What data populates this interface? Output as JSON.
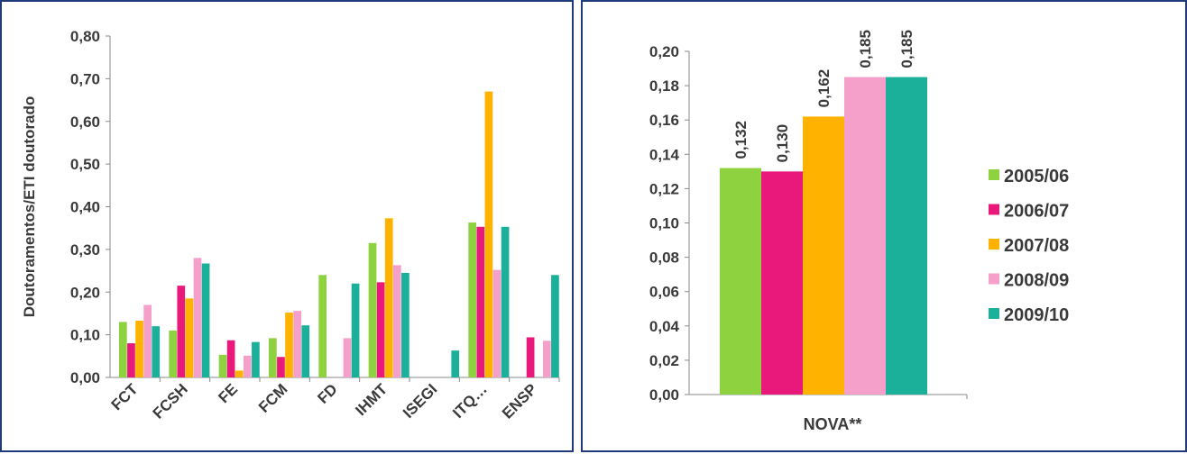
{
  "chart_data": [
    {
      "type": "bar",
      "ylabel": "Doutoramentos/ETI doutorado",
      "xlabel": "",
      "ylim": [
        0,
        0.8
      ],
      "yticks": [
        "0,00",
        "0,10",
        "0,20",
        "0,30",
        "0,40",
        "0,50",
        "0,60",
        "0,70",
        "0,80"
      ],
      "categories": [
        "FCT",
        "FCSH",
        "FE",
        "FCM",
        "FD",
        "IHMT",
        "ISEGI",
        "ITQ…",
        "ENSP"
      ],
      "series": [
        {
          "name": "2005/06",
          "color": "#8ed23f",
          "values": [
            0.13,
            0.11,
            0.053,
            0.092,
            0.24,
            0.315,
            null,
            0.363,
            null
          ]
        },
        {
          "name": "2006/07",
          "color": "#e8197a",
          "values": [
            0.08,
            0.215,
            0.087,
            0.048,
            null,
            0.223,
            null,
            0.353,
            0.094
          ]
        },
        {
          "name": "2007/08",
          "color": "#ffb300",
          "values": [
            0.133,
            0.185,
            0.016,
            0.152,
            null,
            0.373,
            null,
            0.67,
            null
          ]
        },
        {
          "name": "2008/09",
          "color": "#f59fcb",
          "values": [
            0.17,
            0.28,
            0.051,
            0.156,
            0.092,
            0.263,
            null,
            0.252,
            0.086
          ]
        },
        {
          "name": "2009/10",
          "color": "#1ab09a",
          "values": [
            0.12,
            0.267,
            0.083,
            0.122,
            0.22,
            0.245,
            0.063,
            0.353,
            0.24
          ]
        }
      ],
      "grid": false,
      "legend": "none"
    },
    {
      "type": "bar",
      "ylabel": "",
      "xlabel": "",
      "ylim": [
        0,
        0.2
      ],
      "yticks": [
        "0,00",
        "0,02",
        "0,04",
        "0,06",
        "0,08",
        "0,10",
        "0,12",
        "0,14",
        "0,16",
        "0,18",
        "0,20"
      ],
      "categories": [
        "NOVA**"
      ],
      "series": [
        {
          "name": "2005/06",
          "color": "#8ed23f",
          "values": [
            0.132
          ],
          "label": "0,132"
        },
        {
          "name": "2006/07",
          "color": "#e8197a",
          "values": [
            0.13
          ],
          "label": "0,130"
        },
        {
          "name": "2007/08",
          "color": "#ffb300",
          "values": [
            0.162
          ],
          "label": "0,162"
        },
        {
          "name": "2008/09",
          "color": "#f59fcb",
          "values": [
            0.185
          ],
          "label": "0,185"
        },
        {
          "name": "2009/10",
          "color": "#1ab09a",
          "values": [
            0.185
          ],
          "label": "0,185"
        }
      ],
      "grid": false,
      "legend": "right"
    }
  ]
}
